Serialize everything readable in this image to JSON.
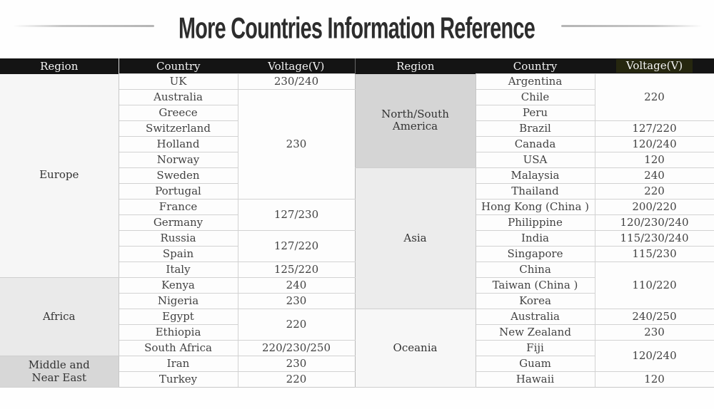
{
  "title": "More Countries Information Reference",
  "table": {
    "headers": {
      "region": "Region",
      "country": "Country",
      "voltage": "Voltage(V)"
    },
    "left": {
      "regions": [
        "Europe",
        "Africa",
        "Middle and Near East"
      ],
      "countries": [
        "UK",
        "Australia",
        "Greece",
        "Switzerland",
        "Holland",
        "Norway",
        "Sweden",
        "Portugal",
        "France",
        "Germany",
        "Russia",
        "Spain",
        "Italy",
        "Kenya",
        "Nigeria",
        "Egypt",
        "Ethiopia",
        "South Africa",
        "Iran",
        "Turkey"
      ],
      "voltages": [
        "230/240",
        "230",
        "127/230",
        "127/220",
        "125/220",
        "240",
        "230",
        "220",
        "220/230/250",
        "230",
        "220"
      ]
    },
    "right": {
      "regions": [
        "North/South America",
        "Asia",
        "Oceania"
      ],
      "countries": [
        "Argentina",
        "Chile",
        "Peru",
        "Brazil",
        "Canada",
        "USA",
        "Malaysia",
        "Thailand",
        "Hong Kong (China )",
        "Philippine",
        "India",
        "Singapore",
        "China",
        "Taiwan (China )",
        "Korea",
        "Australia",
        "New Zealand",
        "Fiji",
        "Guam",
        "Hawaii"
      ],
      "voltages": [
        "220",
        "127/220",
        "120/240",
        "120",
        "240",
        "220",
        "200/220",
        "120/230/240",
        "115/230/240",
        "115/230",
        "110/220",
        "240/250",
        "230",
        "120/240",
        "120"
      ]
    }
  },
  "colors": {
    "header_bg": "#141414",
    "header_text": "#f4f4f4",
    "body_text": "#424242",
    "grid_line": "#d2d2d2",
    "title_text": "#2d2d2d",
    "title_rule": "#c6c6c6",
    "region_europe_bg": "#f6f6f6",
    "region_africa_bg": "#eaeaea",
    "region_middle_east_bg": "#d7d7d7",
    "region_north_south_america_bg": "#d5d5d5",
    "region_asia_bg": "#ececec",
    "region_oceania_bg": "#f7f7f7",
    "voltage_header_highlight_bg": "#26270f"
  }
}
